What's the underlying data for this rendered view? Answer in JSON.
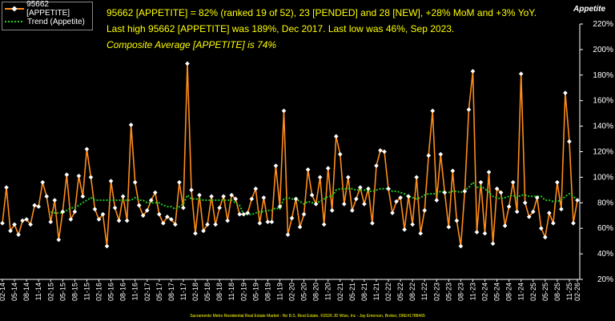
{
  "headline": {
    "line1": "95662 [APPETITE] = 82% (ranked 19 of 52), 23 [PENDED] and 28 [NEW], +28% MoM and +3% YoY.",
    "line2": "Last high 95662 [APPETITE] was 189%, Dec 2017. Last low was 46%, Sep 2023.",
    "line3": "Composite Average [APPETITE] is 74%"
  },
  "corner_label": "Appetite",
  "footer": "Sacramento Metro Residential Real Estate Market - No B.S. Real Estate, ©2026 JD Wise, Inc - Jay Emerson, Broker, DRE#1788465",
  "colors": {
    "series": "#ff8c1a",
    "trend": "#22cc22",
    "marker": "#ffffff",
    "text": "#ffff00",
    "axis": "#ffffff"
  },
  "chart_data": {
    "type": "line",
    "x_ticks": [
      "02-14",
      "05-14",
      "08-14",
      "11-14",
      "02-15",
      "05-15",
      "08-15",
      "11-15",
      "02-16",
      "05-16",
      "08-16",
      "11-16",
      "02-17",
      "05-17",
      "08-17",
      "11-17",
      "02-18",
      "05-18",
      "08-18",
      "11-18",
      "02-19",
      "05-19",
      "08-19",
      "11-19",
      "02-20",
      "05-20",
      "08-20",
      "11-20",
      "02-21",
      "05-21",
      "08-21",
      "11-21",
      "02-22",
      "05-22",
      "08-22",
      "11-22",
      "02-23",
      "05-23",
      "08-23",
      "11-23",
      "02-24",
      "05-24",
      "08-24",
      "11-24",
      "02-25",
      "05-25",
      "08-25",
      "11-25",
      "02-26"
    ],
    "ylim": [
      20,
      220
    ],
    "yticks": [
      20,
      40,
      60,
      80,
      100,
      120,
      140,
      160,
      180,
      200,
      220
    ],
    "ytick_suffix": "%",
    "grid": false,
    "legend": "top-left",
    "series": [
      {
        "name": "95662 [APPETITE]",
        "values": [
          64,
          92,
          58,
          63,
          55,
          66,
          67,
          63,
          78,
          77,
          96,
          85,
          65,
          82,
          51,
          73,
          102,
          67,
          73,
          101,
          85,
          122,
          100,
          75,
          67,
          71,
          46,
          97,
          76,
          66,
          85,
          66,
          141,
          96,
          78,
          70,
          74,
          82,
          88,
          71,
          64,
          69,
          67,
          63,
          96,
          76,
          189,
          90,
          56,
          86,
          58,
          63,
          85,
          63,
          76,
          85,
          66,
          86,
          83,
          71,
          71,
          72,
          83,
          91,
          64,
          84,
          65,
          65,
          109,
          77,
          152,
          55,
          68,
          83,
          61,
          71,
          106,
          86,
          79,
          100,
          63,
          107,
          74,
          132,
          118,
          79,
          100,
          74,
          83,
          92,
          79,
          91,
          64,
          109,
          121,
          120,
          91,
          72,
          81,
          84,
          59,
          85,
          63,
          100,
          56,
          74,
          117,
          152,
          82,
          118,
          88,
          61,
          105,
          66,
          46,
          89,
          153,
          183,
          57,
          96,
          56,
          104,
          48,
          91,
          88,
          62,
          77,
          96,
          73,
          181,
          80,
          69,
          73,
          84,
          60,
          53,
          72,
          64,
          96,
          75,
          166,
          128,
          64,
          82
        ]
      },
      {
        "name": "Trend (Appetite)",
        "values": [
          null,
          null,
          null,
          null,
          null,
          null,
          null,
          null,
          null,
          null,
          null,
          null,
          73,
          72,
          72,
          72,
          74,
          76,
          76,
          78,
          80,
          82,
          84,
          82,
          82,
          82,
          82,
          82,
          82,
          82,
          82,
          82,
          82,
          84,
          82,
          82,
          80,
          80,
          80,
          80,
          78,
          77,
          77,
          75,
          77,
          79,
          86,
          83,
          83,
          83,
          82,
          82,
          82,
          82,
          82,
          82,
          82,
          82,
          80,
          78,
          71,
          71,
          71,
          72,
          73,
          73,
          74,
          74,
          76,
          75,
          83,
          84,
          83,
          83,
          81,
          79,
          81,
          80,
          80,
          81,
          83,
          85,
          85,
          90,
          91,
          91,
          91,
          91,
          90,
          90,
          90,
          89,
          89,
          90,
          91,
          91,
          91,
          89,
          89,
          88,
          87,
          85,
          84,
          83,
          84,
          86,
          87,
          87,
          87,
          89,
          88,
          88,
          89,
          89,
          88,
          90,
          92,
          96,
          92,
          93,
          91,
          88,
          85,
          84,
          83,
          84,
          85,
          86,
          84,
          86,
          86,
          85,
          85,
          85,
          85,
          82,
          82,
          81,
          81,
          82,
          85,
          87,
          85,
          82
        ]
      }
    ]
  }
}
